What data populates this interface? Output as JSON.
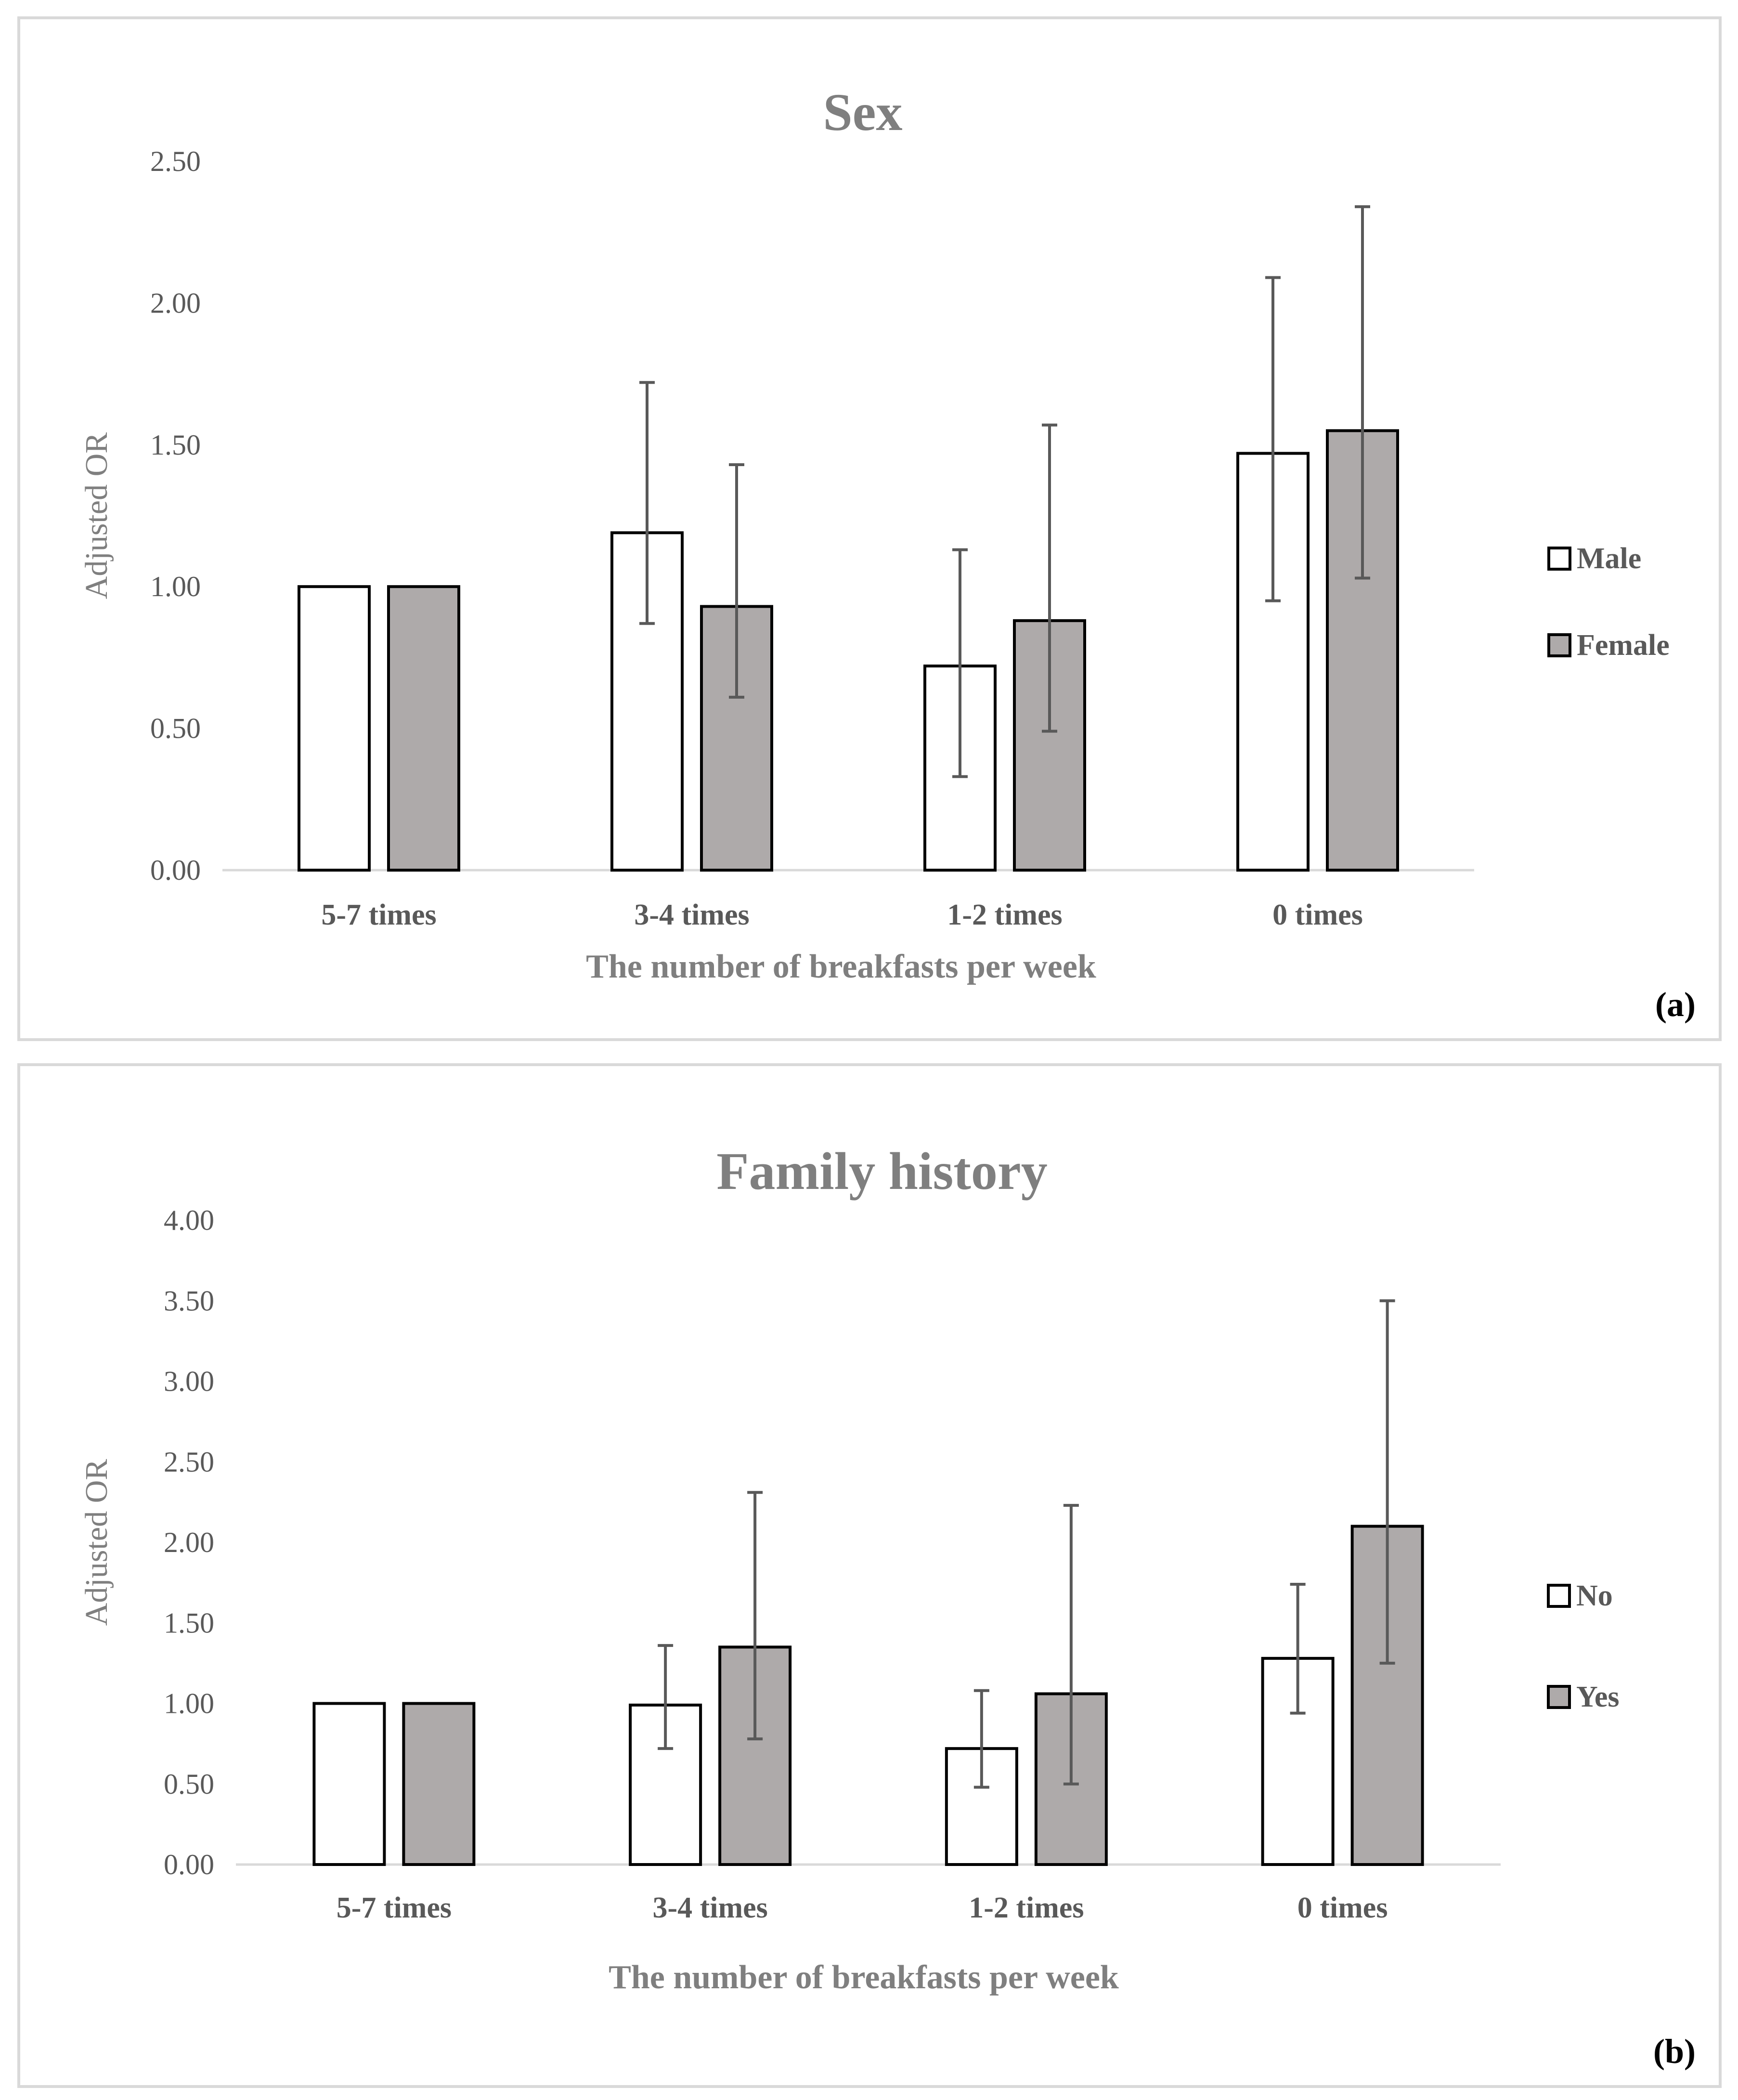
{
  "chart_data": [
    {
      "type": "bar",
      "panel_label": "(a)",
      "title": "Sex",
      "xlabel": "The number of breakfasts per week",
      "ylabel": "Adjusted OR",
      "ylim": [
        0,
        2.5
      ],
      "yticks": [
        "0.00",
        "0.50",
        "1.00",
        "1.50",
        "2.00",
        "2.50"
      ],
      "categories": [
        "5-7 times",
        "3-4 times",
        "1-2 times",
        "0 times"
      ],
      "legend_position": "right",
      "series": [
        {
          "name": "Male",
          "color": "#ffffff",
          "values": [
            1.0,
            1.19,
            0.72,
            1.47
          ],
          "ci_low": [
            null,
            0.87,
            0.33,
            0.95
          ],
          "ci_high": [
            null,
            1.72,
            1.13,
            2.09
          ]
        },
        {
          "name": "Female",
          "color": "#aeaaaa",
          "values": [
            1.0,
            0.93,
            0.88,
            1.55
          ],
          "ci_low": [
            null,
            0.61,
            0.49,
            1.03
          ],
          "ci_high": [
            null,
            1.43,
            1.57,
            2.34
          ]
        }
      ]
    },
    {
      "type": "bar",
      "panel_label": "(b)",
      "title": "Family history",
      "xlabel": "The number of breakfasts per week",
      "ylabel": "Adjusted OR",
      "ylim": [
        0,
        4.0
      ],
      "yticks": [
        "0.00",
        "0.50",
        "1.00",
        "1.50",
        "2.00",
        "2.50",
        "3.00",
        "3.50",
        "4.00"
      ],
      "categories": [
        "5-7 times",
        "3-4 times",
        "1-2 times",
        "0 times"
      ],
      "legend_position": "right",
      "series": [
        {
          "name": "No",
          "color": "#ffffff",
          "values": [
            1.0,
            0.99,
            0.72,
            1.28
          ],
          "ci_low": [
            null,
            0.72,
            0.48,
            0.94
          ],
          "ci_high": [
            null,
            1.36,
            1.08,
            1.74
          ]
        },
        {
          "name": "Yes",
          "color": "#aeaaaa",
          "values": [
            1.0,
            1.35,
            1.06,
            2.1
          ],
          "ci_low": [
            null,
            0.78,
            0.5,
            1.25
          ],
          "ci_high": [
            null,
            2.31,
            2.23,
            3.5
          ]
        }
      ]
    }
  ]
}
